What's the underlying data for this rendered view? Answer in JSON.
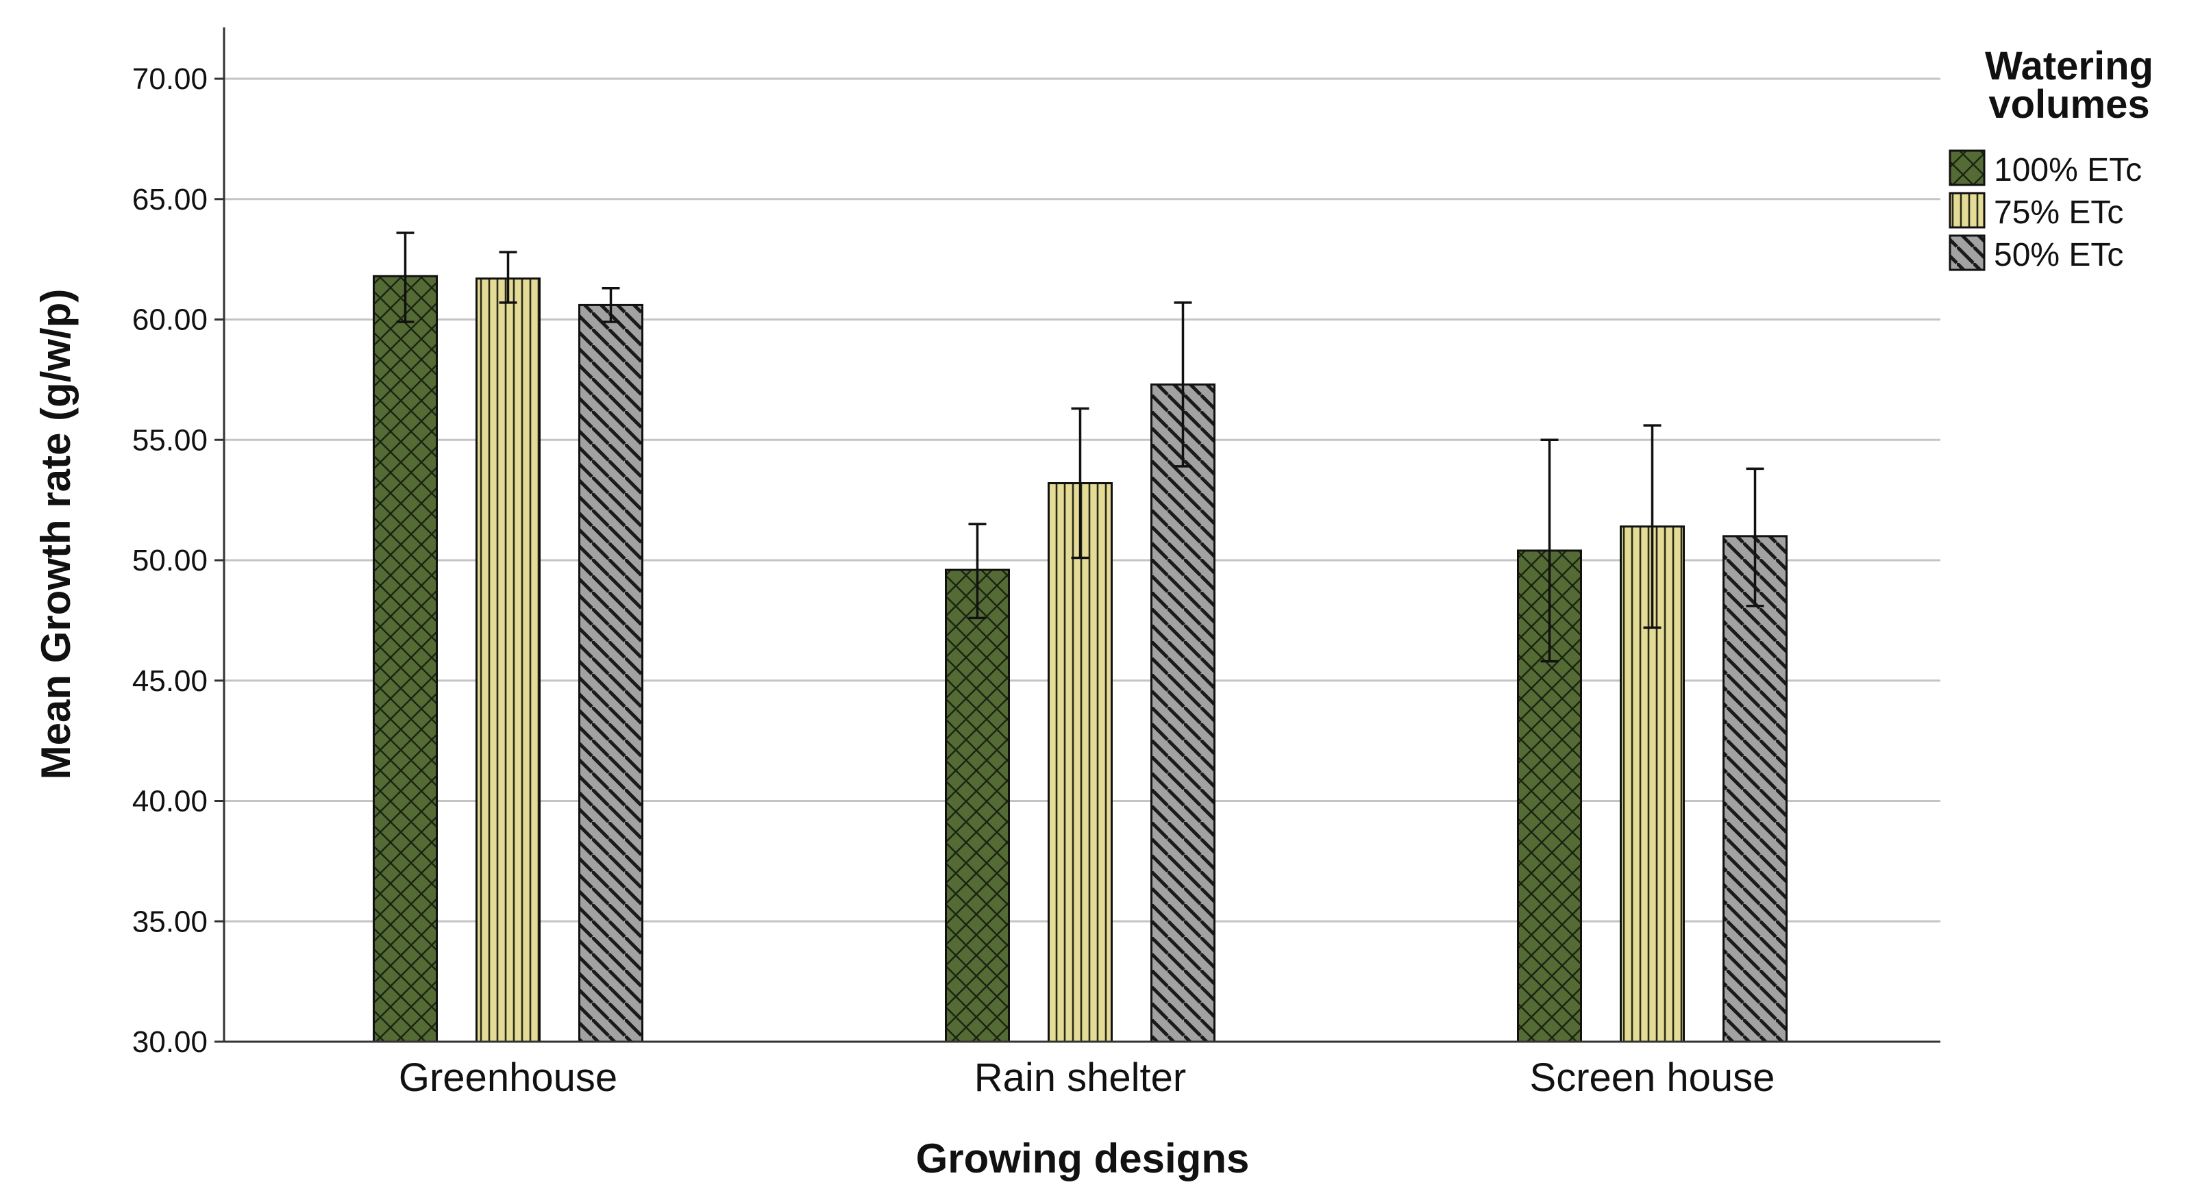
{
  "chart_data": {
    "type": "bar",
    "xlabel": "Growing designs",
    "ylabel": "Mean Growth rate (g/w/p)",
    "ylim": [
      30,
      70
    ],
    "yticks": [
      "30.00",
      "35.00",
      "40.00",
      "45.00",
      "50.00",
      "55.00",
      "60.00",
      "65.00",
      "70.00"
    ],
    "grid": true,
    "legend": {
      "title_lines": [
        "Watering",
        "volumes"
      ],
      "placement": "top-right"
    },
    "categories": [
      "Greenhouse",
      "Rain shelter",
      "Screen house"
    ],
    "series": [
      {
        "name": "100% ETc",
        "pattern": "crosshatch",
        "fill": "#556b35",
        "ink": "#1a2410",
        "values": [
          61.8,
          49.6,
          50.4
        ],
        "err_low": [
          59.9,
          47.6,
          45.8
        ],
        "err_high": [
          63.6,
          51.5,
          55.0
        ]
      },
      {
        "name": "75% ETc",
        "pattern": "vertical",
        "fill": "#e4db96",
        "ink": "#2a2a1a",
        "values": [
          61.7,
          53.2,
          51.4
        ],
        "err_low": [
          60.7,
          50.1,
          47.2
        ],
        "err_high": [
          62.8,
          56.3,
          55.6
        ]
      },
      {
        "name": "50% ETc",
        "pattern": "diagonal",
        "fill": "#a2a2a2",
        "ink": "#1a1a1a",
        "values": [
          60.6,
          57.3,
          51.0
        ],
        "err_low": [
          59.9,
          53.9,
          48.1
        ],
        "err_high": [
          61.3,
          60.7,
          53.8
        ]
      }
    ]
  }
}
